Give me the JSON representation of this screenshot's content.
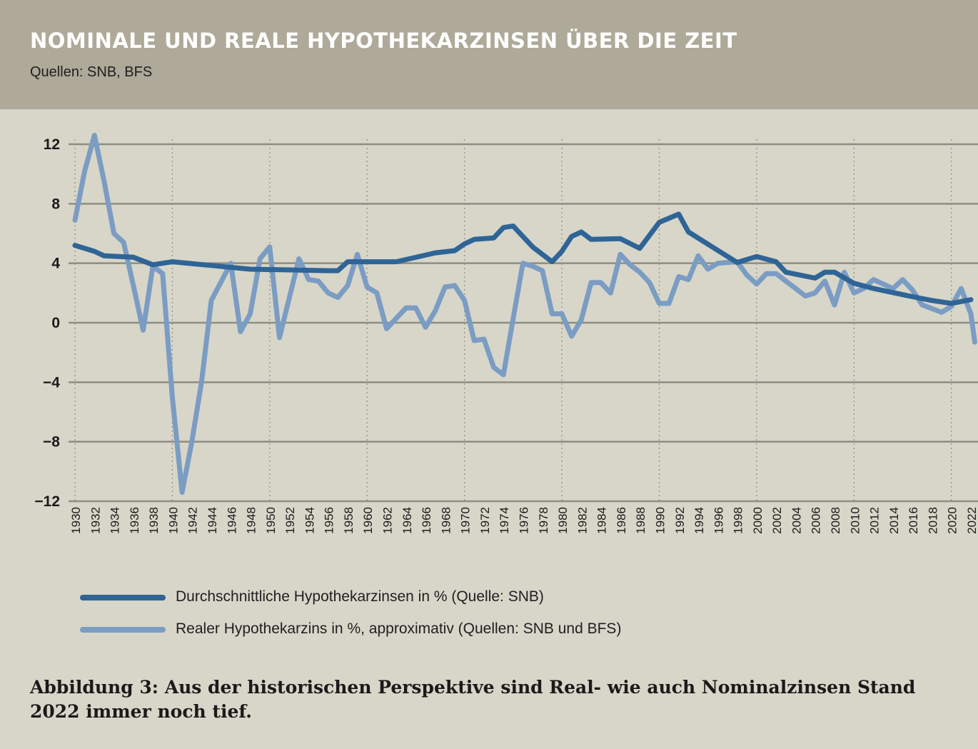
{
  "header": {
    "title": "NOMINALE UND REALE HYPOTHEKARZINSEN ÜBER DIE ZEIT",
    "subtitle": "Quellen: SNB, BFS"
  },
  "colors": {
    "background": "#d7d6c9",
    "header_band": "#aea998",
    "nominal": "#2f6496",
    "real": "#7b9cc3",
    "grid": "#8e8d82"
  },
  "chart_data": {
    "type": "line",
    "title": "NOMINALE UND REALE HYPOTHEKARZINSEN ÜBER DIE ZEIT",
    "xlabel": "",
    "ylabel": "",
    "xlim": [
      1930,
      2022
    ],
    "ylim": [
      -12,
      12
    ],
    "yticks": [
      12,
      8,
      4,
      0,
      -4,
      -8,
      -12
    ],
    "ytick_labels": [
      "12",
      "8",
      "4",
      "0",
      "−4",
      "−8",
      "−12"
    ],
    "xtick_labels": [
      "1930",
      "1932",
      "1934",
      "1936",
      "1938",
      "1940",
      "1942",
      "1944",
      "1946",
      "1948",
      "1950",
      "1952",
      "1954",
      "1956",
      "1958",
      "1960",
      "1962",
      "1964",
      "1966",
      "1968",
      "1970",
      "1972",
      "1974",
      "1976",
      "1978",
      "1980",
      "1982",
      "1984",
      "1986",
      "1988",
      "1990",
      "1992",
      "1994",
      "1996",
      "1998",
      "2000",
      "2002",
      "2004",
      "2006",
      "2008",
      "2010",
      "2012",
      "2014",
      "2016",
      "2018",
      "2020",
      "2022"
    ],
    "grid": "horizontal solid, vertical dotted",
    "legend_position": "bottom-left",
    "series": [
      {
        "name": "Durchschnittliche Hypothekarzinsen in % (Quelle: SNB)",
        "points": [
          [
            1930,
            5.2
          ],
          [
            1932,
            4.8
          ],
          [
            1933,
            4.5
          ],
          [
            1936,
            4.4
          ],
          [
            1938,
            3.9
          ],
          [
            1940,
            4.1
          ],
          [
            1944,
            3.85
          ],
          [
            1948,
            3.6
          ],
          [
            1952,
            3.55
          ],
          [
            1956,
            3.5
          ],
          [
            1957,
            3.5
          ],
          [
            1958,
            4.1
          ],
          [
            1963,
            4.1
          ],
          [
            1967,
            4.7
          ],
          [
            1969,
            4.85
          ],
          [
            1970,
            5.3
          ],
          [
            1971,
            5.6
          ],
          [
            1973,
            5.7
          ],
          [
            1974,
            6.4
          ],
          [
            1975,
            6.5
          ],
          [
            1977,
            5.1
          ],
          [
            1979,
            4.1
          ],
          [
            1980,
            4.8
          ],
          [
            1981,
            5.8
          ],
          [
            1982,
            6.1
          ],
          [
            1983,
            5.6
          ],
          [
            1986,
            5.65
          ],
          [
            1988,
            5.0
          ],
          [
            1990,
            6.75
          ],
          [
            1992,
            7.3
          ],
          [
            1993,
            6.1
          ],
          [
            1998,
            4.05
          ],
          [
            2000,
            4.45
          ],
          [
            2002,
            4.1
          ],
          [
            2003,
            3.4
          ],
          [
            2006,
            3.0
          ],
          [
            2007,
            3.4
          ],
          [
            2008,
            3.4
          ],
          [
            2010,
            2.65
          ],
          [
            2012,
            2.3
          ],
          [
            2016,
            1.75
          ],
          [
            2018,
            1.5
          ],
          [
            2020,
            1.3
          ],
          [
            2022,
            1.55
          ]
        ]
      },
      {
        "name": "Realer Hypothekarzins in %, approximativ (Quellen: SNB und BFS)",
        "points": [
          [
            1930,
            6.9
          ],
          [
            1931,
            10.2
          ],
          [
            1932,
            12.6
          ],
          [
            1933,
            9.5
          ],
          [
            1934,
            6.0
          ],
          [
            1935,
            5.4
          ],
          [
            1936,
            2.5
          ],
          [
            1937,
            -0.5
          ],
          [
            1938,
            3.8
          ],
          [
            1939,
            3.3
          ],
          [
            1940,
            -5.0
          ],
          [
            1941,
            -11.4
          ],
          [
            1942,
            -8.0
          ],
          [
            1943,
            -4.0
          ],
          [
            1944,
            1.5
          ],
          [
            1946,
            4.0
          ],
          [
            1947,
            -0.6
          ],
          [
            1948,
            0.6
          ],
          [
            1949,
            4.3
          ],
          [
            1950,
            5.1
          ],
          [
            1951,
            -1.0
          ],
          [
            1953,
            4.3
          ],
          [
            1954,
            2.9
          ],
          [
            1955,
            2.8
          ],
          [
            1956,
            2.0
          ],
          [
            1957,
            1.7
          ],
          [
            1958,
            2.5
          ],
          [
            1959,
            4.6
          ],
          [
            1960,
            2.4
          ],
          [
            1961,
            2.0
          ],
          [
            1962,
            -0.4
          ],
          [
            1963,
            0.3
          ],
          [
            1964,
            1.0
          ],
          [
            1965,
            1.0
          ],
          [
            1966,
            -0.3
          ],
          [
            1967,
            0.8
          ],
          [
            1968,
            2.4
          ],
          [
            1969,
            2.5
          ],
          [
            1970,
            1.5
          ],
          [
            1971,
            -1.2
          ],
          [
            1972,
            -1.1
          ],
          [
            1973,
            -3.0
          ],
          [
            1974,
            -3.5
          ],
          [
            1975,
            0.3
          ],
          [
            1976,
            4.0
          ],
          [
            1977,
            3.8
          ],
          [
            1978,
            3.5
          ],
          [
            1979,
            0.6
          ],
          [
            1980,
            0.6
          ],
          [
            1981,
            -0.9
          ],
          [
            1982,
            0.2
          ],
          [
            1983,
            2.7
          ],
          [
            1984,
            2.7
          ],
          [
            1985,
            2.0
          ],
          [
            1986,
            4.6
          ],
          [
            1987,
            3.9
          ],
          [
            1988,
            3.4
          ],
          [
            1989,
            2.7
          ],
          [
            1990,
            1.3
          ],
          [
            1991,
            1.3
          ],
          [
            1992,
            3.1
          ],
          [
            1993,
            2.9
          ],
          [
            1994,
            4.5
          ],
          [
            1995,
            3.6
          ],
          [
            1996,
            4.0
          ],
          [
            1998,
            4.1
          ],
          [
            1999,
            3.2
          ],
          [
            2000,
            2.6
          ],
          [
            2001,
            3.3
          ],
          [
            2002,
            3.3
          ],
          [
            2003,
            2.8
          ],
          [
            2004,
            2.3
          ],
          [
            2005,
            1.8
          ],
          [
            2006,
            2.0
          ],
          [
            2007,
            2.8
          ],
          [
            2008,
            1.2
          ],
          [
            2009,
            3.4
          ],
          [
            2010,
            2.0
          ],
          [
            2011,
            2.3
          ],
          [
            2012,
            2.9
          ],
          [
            2014,
            2.3
          ],
          [
            2015,
            2.9
          ],
          [
            2016,
            2.2
          ],
          [
            2017,
            1.2
          ],
          [
            2019,
            0.7
          ],
          [
            2020,
            1.1
          ],
          [
            2021,
            2.3
          ],
          [
            2022,
            0.6
          ],
          [
            2022.4,
            -1.3
          ]
        ]
      }
    ]
  },
  "legend": {
    "nominal_label": "Durchschnittliche Hypothekarzinsen in % (Quelle: SNB)",
    "real_label": "Realer Hypothekarzins in %, approximativ (Quellen: SNB und BFS)"
  },
  "caption": "Abbildung 3: Aus der historischen Perspektive sind Real- wie auch Nominalzinsen Stand 2022 immer noch tief."
}
